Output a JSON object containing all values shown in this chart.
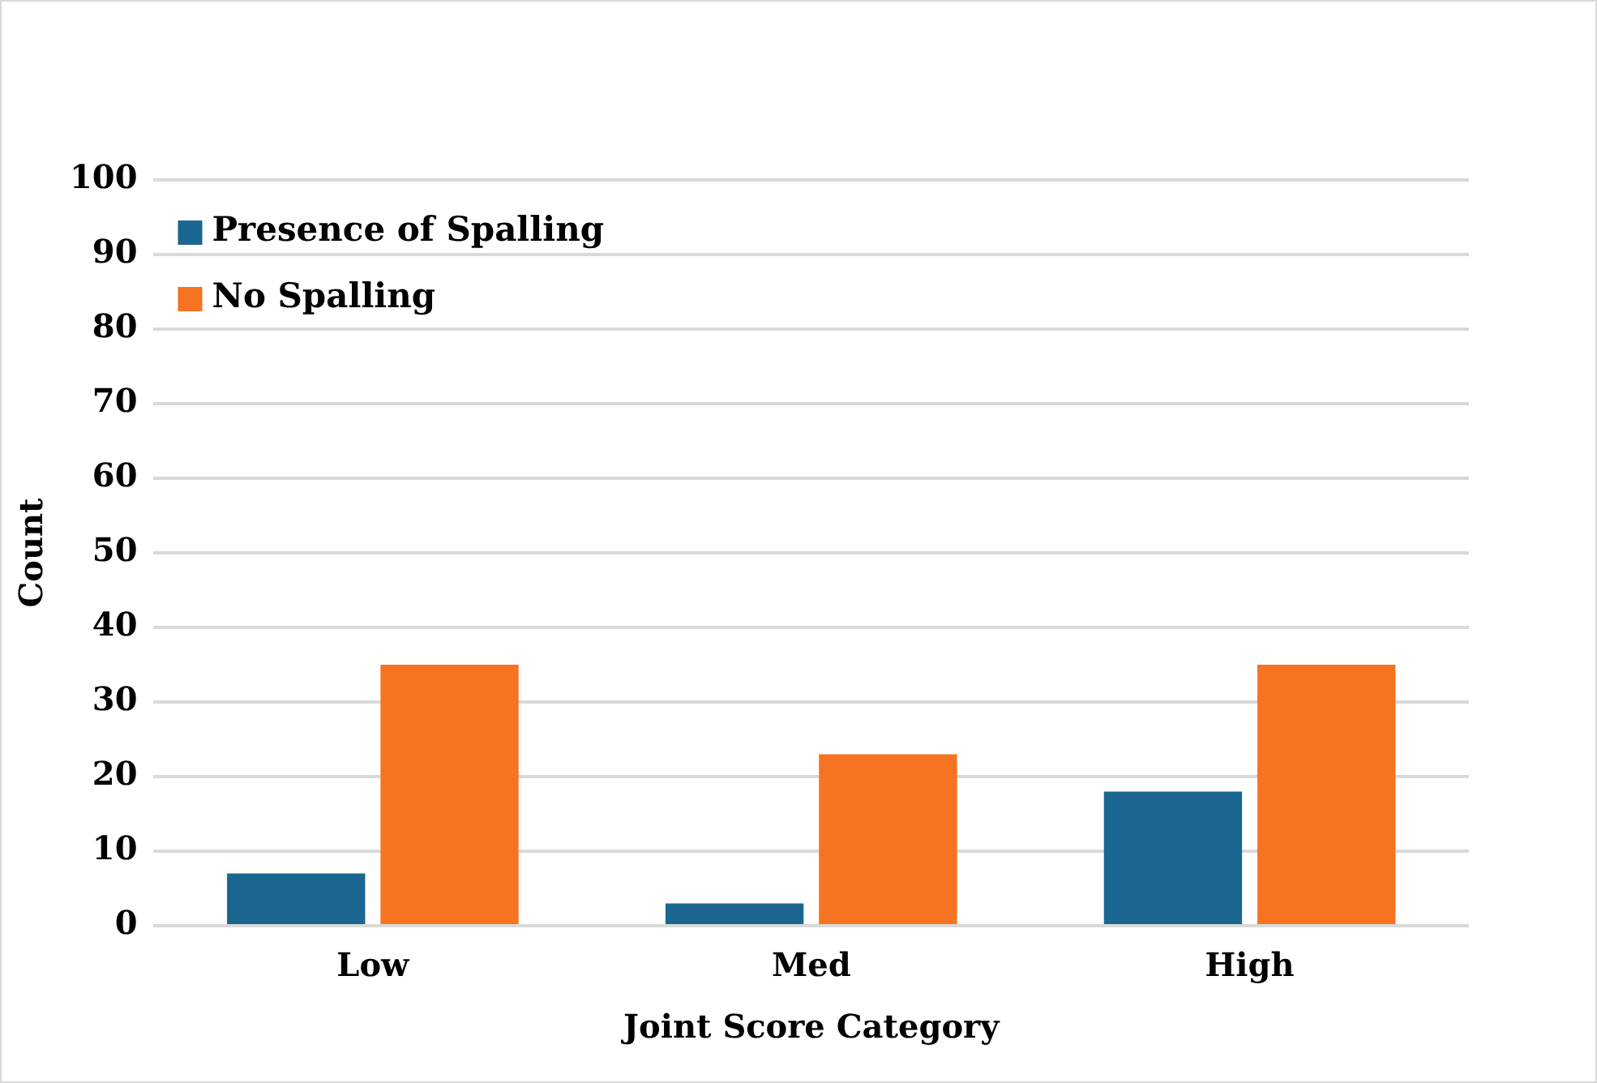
{
  "chart_data": {
    "type": "bar",
    "xlabel": "Joint Score Category",
    "ylabel": "Count",
    "categories": [
      "Low",
      "Med",
      "High"
    ],
    "series": [
      {
        "name": "Presence of Spalling",
        "color": "#1b6691",
        "values": [
          7,
          3,
          18
        ]
      },
      {
        "name": "No Spalling",
        "color": "#f57321",
        "values": [
          35,
          23,
          35
        ]
      }
    ],
    "ylim": [
      0,
      100
    ],
    "yticks": [
      0,
      10,
      20,
      30,
      40,
      50,
      60,
      70,
      80,
      90,
      100
    ],
    "grid": "y",
    "legend": "top left"
  }
}
